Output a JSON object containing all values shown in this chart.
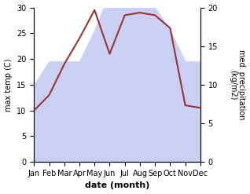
{
  "months": [
    "Jan",
    "Feb",
    "Mar",
    "Apr",
    "May",
    "Jun",
    "Jul",
    "Aug",
    "Sep",
    "Oct",
    "Nov",
    "Dec"
  ],
  "temperature": [
    10,
    13,
    19,
    24,
    29.5,
    21,
    28.5,
    29,
    28.5,
    26,
    11,
    10.5
  ],
  "precipitation": [
    10,
    13,
    13,
    13,
    17,
    22,
    22,
    22,
    20,
    17,
    13,
    13
  ],
  "temp_color": "#a03030",
  "precip_fill_color": "#c8d0f4",
  "precip_fill_alpha": 1.0,
  "ylabel_left": "max temp (C)",
  "ylabel_right": "med. precipitation\n(kg/m2)",
  "xlabel": "date (month)",
  "ylim_left": [
    0,
    30
  ],
  "ylim_right": [
    0,
    20
  ],
  "yticks_left": [
    0,
    5,
    10,
    15,
    20,
    25,
    30
  ],
  "yticks_right": [
    0,
    5,
    10,
    15,
    20
  ],
  "line_width": 1.5,
  "label_fontsize": 7,
  "xlabel_fontsize": 8
}
